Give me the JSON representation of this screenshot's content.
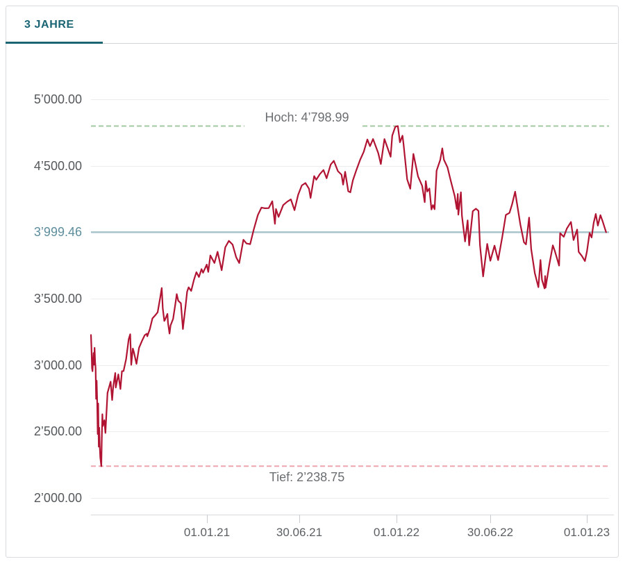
{
  "tabs": [
    {
      "label": "3 JAHRE",
      "active": true
    }
  ],
  "colors": {
    "accent_teal": "#1a6473",
    "price_line": "#b11432",
    "current_line": "#a7c4cd",
    "current_label": "#5d8e9d",
    "high_dash": "#a2caa2",
    "low_dash": "#f0a4ad",
    "grid": "#ececee",
    "axis": "#d8dbdd",
    "tick": "#c9ccce",
    "label_gray": "#54585a",
    "annotation_gray": "#6a6e71",
    "card_border": "#d9dcde"
  },
  "chart_data": {
    "type": "line",
    "title": "",
    "legend": "none",
    "grid": true,
    "y_range": [
      2000,
      5000
    ],
    "y_ticks": [
      {
        "label": "5’000.00",
        "value": 5000
      },
      {
        "label": "4’500.00",
        "value": 4500
      },
      {
        "label": "3’999.46",
        "value": 3999.46,
        "current": true
      },
      {
        "label": "3’500.00",
        "value": 3500
      },
      {
        "label": "3’000.00",
        "value": 3000
      },
      {
        "label": "2’500.00",
        "value": 2500
      },
      {
        "label": "2’000.00",
        "value": 2000
      }
    ],
    "x_ticks": [
      {
        "label": "01.01.21",
        "f": 0.2245
      },
      {
        "label": "30.06.21",
        "f": 0.4032
      },
      {
        "label": "01.01.22",
        "f": 0.5914
      },
      {
        "label": "30.06.22",
        "f": 0.7728
      },
      {
        "label": "01.01.23",
        "f": 0.9597
      }
    ],
    "high": {
      "label": "Hoch: 4’798.99",
      "value": 4798.99
    },
    "low": {
      "label": "Tief: 2’238.75",
      "value": 2238.75
    },
    "current": {
      "label": "3’999.46",
      "value": 3999.46
    },
    "series": [
      {
        "name": "price",
        "points": [
          [
            0.0,
            3226
          ],
          [
            0.001,
            3128
          ],
          [
            0.002,
            2978
          ],
          [
            0.003,
            2954
          ],
          [
            0.005,
            3090
          ],
          [
            0.006,
            3003
          ],
          [
            0.007,
            3130
          ],
          [
            0.008,
            3024
          ],
          [
            0.009,
            2972
          ],
          [
            0.01,
            2746
          ],
          [
            0.011,
            2882
          ],
          [
            0.012,
            2741
          ],
          [
            0.013,
            2481
          ],
          [
            0.014,
            2711
          ],
          [
            0.015,
            2386
          ],
          [
            0.016,
            2529
          ],
          [
            0.017,
            2398
          ],
          [
            0.018,
            2305
          ],
          [
            0.02,
            2238.75
          ],
          [
            0.021,
            2447
          ],
          [
            0.022,
            2630
          ],
          [
            0.023,
            2541
          ],
          [
            0.026,
            2585
          ],
          [
            0.028,
            2489
          ],
          [
            0.032,
            2790
          ],
          [
            0.036,
            2846
          ],
          [
            0.038,
            2875
          ],
          [
            0.041,
            2737
          ],
          [
            0.043,
            2837
          ],
          [
            0.047,
            2940
          ],
          [
            0.048,
            2831
          ],
          [
            0.053,
            2930
          ],
          [
            0.057,
            2820
          ],
          [
            0.06,
            2954
          ],
          [
            0.063,
            2955
          ],
          [
            0.068,
            3044
          ],
          [
            0.073,
            3194
          ],
          [
            0.076,
            3232
          ],
          [
            0.078,
            3002
          ],
          [
            0.081,
            3125
          ],
          [
            0.083,
            3098
          ],
          [
            0.088,
            3009
          ],
          [
            0.093,
            3130
          ],
          [
            0.099,
            3185
          ],
          [
            0.104,
            3225
          ],
          [
            0.108,
            3236
          ],
          [
            0.109,
            3216
          ],
          [
            0.114,
            3271
          ],
          [
            0.119,
            3351
          ],
          [
            0.124,
            3373
          ],
          [
            0.129,
            3397
          ],
          [
            0.134,
            3508
          ],
          [
            0.137,
            3580
          ],
          [
            0.139,
            3427
          ],
          [
            0.142,
            3332
          ],
          [
            0.143,
            3339
          ],
          [
            0.148,
            3385
          ],
          [
            0.149,
            3319
          ],
          [
            0.152,
            3237
          ],
          [
            0.154,
            3298
          ],
          [
            0.159,
            3348
          ],
          [
            0.164,
            3477
          ],
          [
            0.166,
            3534
          ],
          [
            0.169,
            3484
          ],
          [
            0.174,
            3465
          ],
          [
            0.178,
            3271
          ],
          [
            0.179,
            3310
          ],
          [
            0.183,
            3443
          ],
          [
            0.186,
            3551
          ],
          [
            0.189,
            3585
          ],
          [
            0.194,
            3558
          ],
          [
            0.199,
            3638
          ],
          [
            0.204,
            3699
          ],
          [
            0.209,
            3663
          ],
          [
            0.214,
            3722
          ],
          [
            0.217,
            3695
          ],
          [
            0.224,
            3756
          ],
          [
            0.227,
            3701
          ],
          [
            0.231,
            3825
          ],
          [
            0.239,
            3768
          ],
          [
            0.245,
            3853
          ],
          [
            0.253,
            3714
          ],
          [
            0.26,
            3887
          ],
          [
            0.267,
            3935
          ],
          [
            0.274,
            3907
          ],
          [
            0.281,
            3811
          ],
          [
            0.287,
            3768
          ],
          [
            0.295,
            3943
          ],
          [
            0.301,
            3915
          ],
          [
            0.308,
            3910
          ],
          [
            0.315,
            4020
          ],
          [
            0.323,
            4129
          ],
          [
            0.33,
            4185
          ],
          [
            0.337,
            4180
          ],
          [
            0.344,
            4181
          ],
          [
            0.351,
            4233
          ],
          [
            0.356,
            4063
          ],
          [
            0.358,
            4174
          ],
          [
            0.363,
            4115
          ],
          [
            0.372,
            4204
          ],
          [
            0.38,
            4230
          ],
          [
            0.387,
            4247
          ],
          [
            0.394,
            4166
          ],
          [
            0.401,
            4281
          ],
          [
            0.408,
            4352
          ],
          [
            0.415,
            4370
          ],
          [
            0.422,
            4327
          ],
          [
            0.425,
            4258
          ],
          [
            0.432,
            4422
          ],
          [
            0.436,
            4395
          ],
          [
            0.443,
            4437
          ],
          [
            0.45,
            4468
          ],
          [
            0.456,
            4406
          ],
          [
            0.464,
            4509
          ],
          [
            0.47,
            4537
          ],
          [
            0.478,
            4459
          ],
          [
            0.485,
            4433
          ],
          [
            0.488,
            4358
          ],
          [
            0.492,
            4455
          ],
          [
            0.498,
            4308
          ],
          [
            0.502,
            4300
          ],
          [
            0.507,
            4391
          ],
          [
            0.514,
            4471
          ],
          [
            0.521,
            4545
          ],
          [
            0.528,
            4605
          ],
          [
            0.535,
            4698
          ],
          [
            0.54,
            4647
          ],
          [
            0.546,
            4701
          ],
          [
            0.556,
            4595
          ],
          [
            0.561,
            4513
          ],
          [
            0.568,
            4701
          ],
          [
            0.574,
            4634
          ],
          [
            0.58,
            4568
          ],
          [
            0.583,
            4726
          ],
          [
            0.589,
            4793
          ],
          [
            0.594,
            4798.99
          ],
          [
            0.598,
            4677
          ],
          [
            0.603,
            4726
          ],
          [
            0.605,
            4663
          ],
          [
            0.612,
            4398
          ],
          [
            0.618,
            4327
          ],
          [
            0.624,
            4589
          ],
          [
            0.633,
            4419
          ],
          [
            0.641,
            4349
          ],
          [
            0.646,
            4226
          ],
          [
            0.648,
            4385
          ],
          [
            0.651,
            4306
          ],
          [
            0.655,
            4329
          ],
          [
            0.659,
            4171
          ],
          [
            0.662,
            4204
          ],
          [
            0.665,
            4173
          ],
          [
            0.669,
            4463
          ],
          [
            0.676,
            4543
          ],
          [
            0.68,
            4631
          ],
          [
            0.683,
            4546
          ],
          [
            0.69,
            4488
          ],
          [
            0.696,
            4393
          ],
          [
            0.704,
            4272
          ],
          [
            0.708,
            4175
          ],
          [
            0.71,
            4288
          ],
          [
            0.711,
            4132
          ],
          [
            0.716,
            4300
          ],
          [
            0.718,
            4123
          ],
          [
            0.724,
            3930
          ],
          [
            0.729,
            4089
          ],
          [
            0.732,
            3901
          ],
          [
            0.739,
            4158
          ],
          [
            0.745,
            4177
          ],
          [
            0.75,
            4160
          ],
          [
            0.753,
            3901
          ],
          [
            0.759,
            3667
          ],
          [
            0.767,
            3912
          ],
          [
            0.773,
            3785
          ],
          [
            0.781,
            3899
          ],
          [
            0.788,
            3790
          ],
          [
            0.796,
            3962
          ],
          [
            0.803,
            4130
          ],
          [
            0.81,
            4145
          ],
          [
            0.815,
            4210
          ],
          [
            0.821,
            4305
          ],
          [
            0.824,
            4228
          ],
          [
            0.831,
            4058
          ],
          [
            0.838,
            3924
          ],
          [
            0.842,
            3908
          ],
          [
            0.848,
            4110
          ],
          [
            0.852,
            3873
          ],
          [
            0.859,
            3693
          ],
          [
            0.866,
            3586
          ],
          [
            0.87,
            3791
          ],
          [
            0.873,
            3640
          ],
          [
            0.878,
            3577
          ],
          [
            0.879,
            3670
          ],
          [
            0.88,
            3583
          ],
          [
            0.887,
            3753
          ],
          [
            0.894,
            3901
          ],
          [
            0.898,
            3856
          ],
          [
            0.906,
            3748
          ],
          [
            0.908,
            3993
          ],
          [
            0.915,
            3965
          ],
          [
            0.921,
            4027
          ],
          [
            0.929,
            4077
          ],
          [
            0.934,
            3941
          ],
          [
            0.941,
            4020
          ],
          [
            0.944,
            3852
          ],
          [
            0.95,
            3822
          ],
          [
            0.956,
            3783
          ],
          [
            0.96,
            3855
          ],
          [
            0.965,
            3995
          ],
          [
            0.969,
            3960
          ],
          [
            0.973,
            4070
          ],
          [
            0.977,
            4137
          ],
          [
            0.981,
            4050
          ],
          [
            0.986,
            4128
          ],
          [
            0.99,
            4085
          ],
          [
            0.997,
            3999.46
          ]
        ]
      }
    ]
  }
}
